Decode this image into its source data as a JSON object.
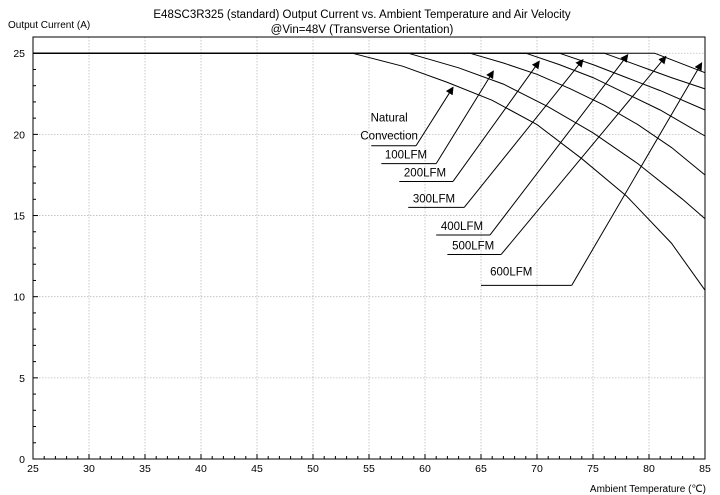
{
  "chart_data": {
    "type": "line",
    "title": "E48SC3R325 (standard)  Output Current vs. Ambient Temperature and Air Velocity",
    "subtitle": "@Vin=48V (Transverse Orientation)",
    "ylabel": "Output Current (A)",
    "xlabel": "Ambient Temperature (℃)",
    "xlim": [
      25,
      85
    ],
    "ylim": [
      0,
      26
    ],
    "x_ticks": [
      25,
      30,
      35,
      40,
      45,
      50,
      55,
      60,
      65,
      70,
      75,
      80,
      85
    ],
    "y_ticks": [
      0,
      5,
      10,
      15,
      20,
      25
    ],
    "grid": true,
    "series": [
      {
        "name": "Natural Convection",
        "x": [
          25,
          53.5,
          58,
          62,
          66,
          70,
          74,
          78,
          82,
          85
        ],
        "y": [
          25,
          25,
          24.2,
          23.2,
          22.1,
          20.6,
          18.5,
          16.2,
          13.3,
          10.4
        ]
      },
      {
        "name": "100LFM",
        "x": [
          25,
          58.5,
          63,
          67,
          71,
          75,
          79,
          83,
          85
        ],
        "y": [
          25,
          25,
          24.1,
          23.1,
          21.7,
          20.1,
          18.2,
          16.0,
          14.8
        ]
      },
      {
        "name": "200LFM",
        "x": [
          25,
          64,
          67,
          70,
          73,
          76,
          79,
          82,
          85
        ],
        "y": [
          25,
          25,
          24.4,
          23.7,
          22.8,
          21.8,
          20.6,
          19.2,
          17.5
        ]
      },
      {
        "name": "300LFM",
        "x": [
          25,
          69,
          72,
          75,
          78,
          81,
          85
        ],
        "y": [
          25,
          25,
          24.3,
          23.5,
          22.5,
          21.5,
          19.9
        ]
      },
      {
        "name": "400LFM",
        "x": [
          25,
          72,
          75,
          78,
          81,
          85
        ],
        "y": [
          25,
          25,
          24.3,
          23.5,
          22.7,
          21.5
        ]
      },
      {
        "name": "500LFM",
        "x": [
          25,
          76,
          78,
          80,
          82,
          85
        ],
        "y": [
          25,
          25,
          24.5,
          24.0,
          23.5,
          22.8
        ]
      },
      {
        "name": "600LFM",
        "x": [
          25,
          80.5,
          82,
          83.5,
          85
        ],
        "y": [
          25,
          25,
          24.6,
          24.2,
          23.8
        ]
      }
    ],
    "annotations": [
      {
        "lines": [
          "Natural",
          "Convection"
        ],
        "text_x": 56.8,
        "text_y": [
          20.8,
          19.7
        ],
        "underline": [
          [
            55.2,
            19.3
          ],
          [
            59.2,
            19.3
          ]
        ],
        "arrow": [
          [
            59.2,
            19.3
          ],
          [
            62.5,
            22.9
          ]
        ]
      },
      {
        "lines": [
          "100LFM"
        ],
        "text_x": 58.3,
        "text_y": [
          18.5
        ],
        "underline": [
          [
            56.1,
            18.2
          ],
          [
            61.0,
            18.2
          ]
        ],
        "arrow": [
          [
            61.0,
            18.2
          ],
          [
            66.1,
            23.9
          ]
        ]
      },
      {
        "lines": [
          "200LFM"
        ],
        "text_x": 60.0,
        "text_y": [
          17.4
        ],
        "underline": [
          [
            57.7,
            17.1
          ],
          [
            62.5,
            17.1
          ]
        ],
        "arrow": [
          [
            62.5,
            17.1
          ],
          [
            70.2,
            24.5
          ]
        ]
      },
      {
        "lines": [
          "300LFM"
        ],
        "text_x": 60.8,
        "text_y": [
          15.8
        ],
        "underline": [
          [
            58.5,
            15.5
          ],
          [
            63.5,
            15.5
          ]
        ],
        "arrow": [
          [
            63.5,
            15.5
          ],
          [
            74.1,
            24.6
          ]
        ]
      },
      {
        "lines": [
          "400LFM"
        ],
        "text_x": 63.3,
        "text_y": [
          14.1
        ],
        "underline": [
          [
            61.0,
            13.8
          ],
          [
            65.8,
            13.8
          ]
        ],
        "arrow": [
          [
            65.8,
            13.8
          ],
          [
            78.1,
            24.9
          ]
        ]
      },
      {
        "lines": [
          "500LFM"
        ],
        "text_x": 64.3,
        "text_y": [
          12.9
        ],
        "underline": [
          [
            62.0,
            12.6
          ],
          [
            66.8,
            12.6
          ]
        ],
        "arrow": [
          [
            66.8,
            12.6
          ],
          [
            81.5,
            24.8
          ]
        ]
      },
      {
        "lines": [
          "600LFM"
        ],
        "text_x": 67.7,
        "text_y": [
          11.3
        ],
        "underline": [
          [
            65.0,
            10.7
          ],
          [
            73.1,
            10.7
          ]
        ],
        "arrow": [
          [
            73.1,
            10.7
          ],
          [
            84.7,
            24.4
          ]
        ]
      }
    ]
  }
}
